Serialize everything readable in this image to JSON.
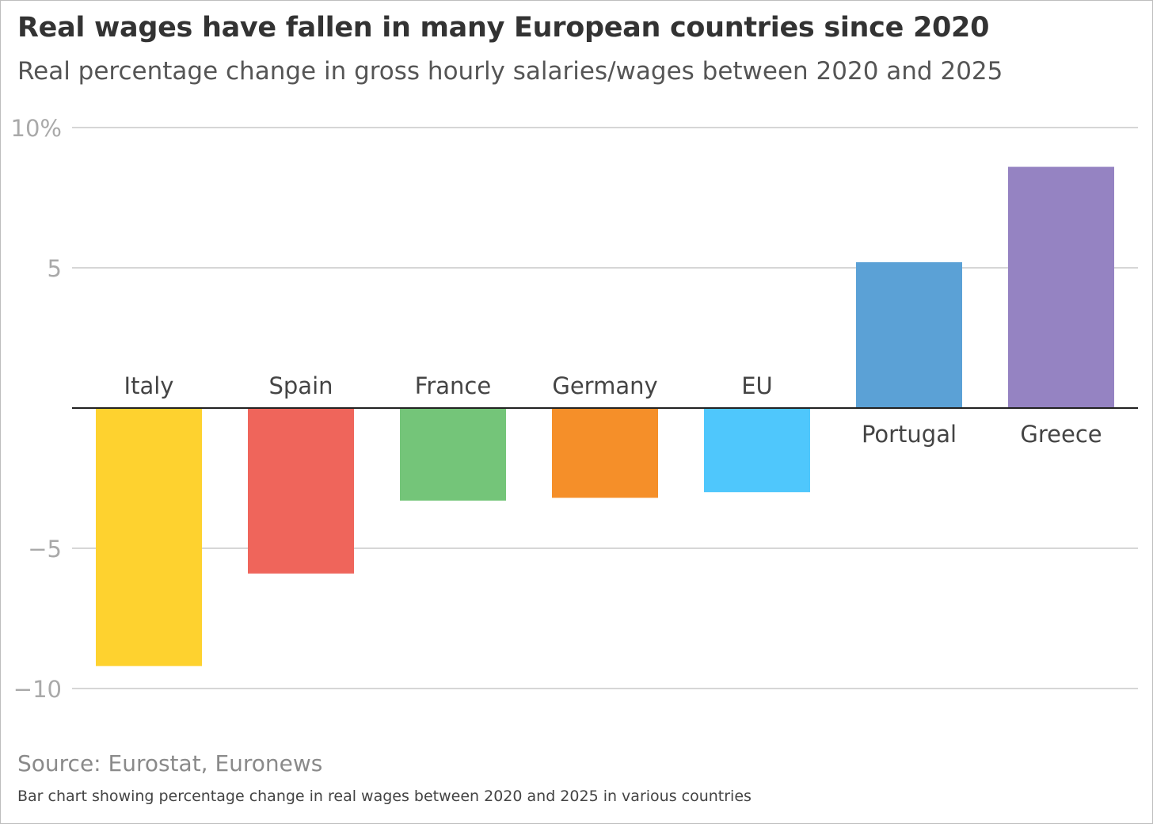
{
  "header": {
    "title": "Real wages have fallen in many European countries since 2020",
    "subtitle": "Real percentage change in gross hourly salaries/wages between 2020 and 2025"
  },
  "footer": {
    "source": "Source: Eurostat, Euronews",
    "caption": "Bar chart showing percentage change in real wages between 2020 and 2025 in various countries"
  },
  "chart_data": {
    "type": "bar",
    "categories": [
      "Italy",
      "Spain",
      "France",
      "Germany",
      "EU",
      "Portugal",
      "Greece"
    ],
    "values": [
      -9.2,
      -5.9,
      -3.3,
      -3.2,
      -3.0,
      5.2,
      8.6
    ],
    "colors": [
      "#fed22f",
      "#ef655b",
      "#74c579",
      "#f58f29",
      "#4fc7fc",
      "#5ba1d6",
      "#9583c2"
    ],
    "ylim": [
      -10,
      10
    ],
    "yticks": [
      {
        "value": 10,
        "label": "10%"
      },
      {
        "value": 5,
        "label": "5"
      },
      {
        "value": -5,
        "label": "−5"
      },
      {
        "value": -10,
        "label": "−10"
      }
    ],
    "grid": true,
    "zero_line_color": "#222222",
    "grid_color": "#c8c8c8",
    "xlabel": "",
    "ylabel": ""
  }
}
